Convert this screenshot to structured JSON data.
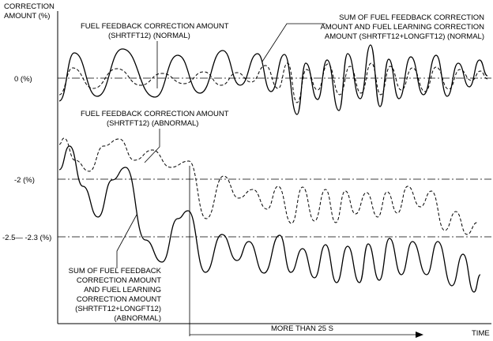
{
  "y_axis_label": [
    "CORRECTION",
    "AMOUNT (%)"
  ],
  "x_axis_label": "TIME",
  "reference_lines": {
    "zero": "0 (%)",
    "minus_two": "-2 (%)",
    "range": "-2.5— -2.3 (%)"
  },
  "annotations": {
    "short_normal": [
      "FUEL FEEDBACK CORRECTION AMOUNT",
      "(SHRTFT12) (NORMAL)"
    ],
    "sum_normal": [
      "SUM OF FUEL FEEDBACK CORRECTION",
      "AMOUNT AND FUEL LEARNING CORRECTION",
      "AMOUNT (SHRTFT12+LONGFT12) (NORMAL)"
    ],
    "short_abnormal": [
      "FUEL FEEDBACK CORRECTION AMOUNT",
      "(SHRTFT12) (ABNORMAL)"
    ],
    "sum_abnormal": [
      "SUM OF FUEL FEEDBACK",
      "CORRECTION AMOUNT",
      "AND FUEL LEARNING",
      "CORRECTION AMOUNT",
      "(SHRTFT12+LONGFT12)",
      "(ABNORMAL)"
    ]
  },
  "duration_label": "MORE THAN 25 S",
  "colors": {
    "ink": "#000000",
    "background": "#ffffff"
  }
}
